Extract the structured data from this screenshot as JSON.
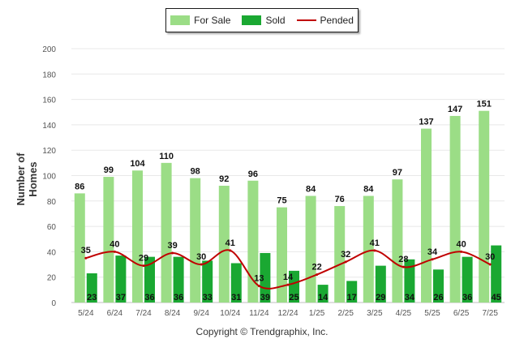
{
  "legend": {
    "for_sale": "For Sale",
    "sold": "Sold",
    "pended": "Pended"
  },
  "colors": {
    "for_sale": "#9bdd86",
    "sold": "#1aa832",
    "pended": "#c00000",
    "grid": "#e8e8e8",
    "axis_text": "#555555"
  },
  "footer": "Copyright © Trendgraphix, Inc.",
  "chart_data": {
    "type": "bar",
    "ylabel": "Number of Homes",
    "xlabel": "",
    "title": "",
    "ylim": [
      0,
      200
    ],
    "yticks": [
      0,
      20,
      40,
      60,
      80,
      100,
      120,
      140,
      160,
      180,
      200
    ],
    "grid": true,
    "legend_position": "top-center",
    "categories": [
      "5/24",
      "6/24",
      "7/24",
      "8/24",
      "9/24",
      "10/24",
      "11/24",
      "12/24",
      "1/25",
      "2/25",
      "3/25",
      "4/25",
      "5/25",
      "6/25",
      "7/25"
    ],
    "series": [
      {
        "name": "For Sale",
        "type": "bar",
        "values": [
          86,
          99,
          104,
          110,
          98,
          92,
          96,
          75,
          84,
          76,
          84,
          97,
          137,
          147,
          151
        ]
      },
      {
        "name": "Sold",
        "type": "bar",
        "values": [
          23,
          37,
          36,
          36,
          33,
          31,
          39,
          25,
          14,
          17,
          29,
          34,
          26,
          36,
          45
        ]
      },
      {
        "name": "Pended",
        "type": "line",
        "values": [
          35,
          40,
          29,
          39,
          30,
          41,
          13,
          14,
          22,
          32,
          41,
          28,
          34,
          40,
          30
        ]
      }
    ]
  }
}
